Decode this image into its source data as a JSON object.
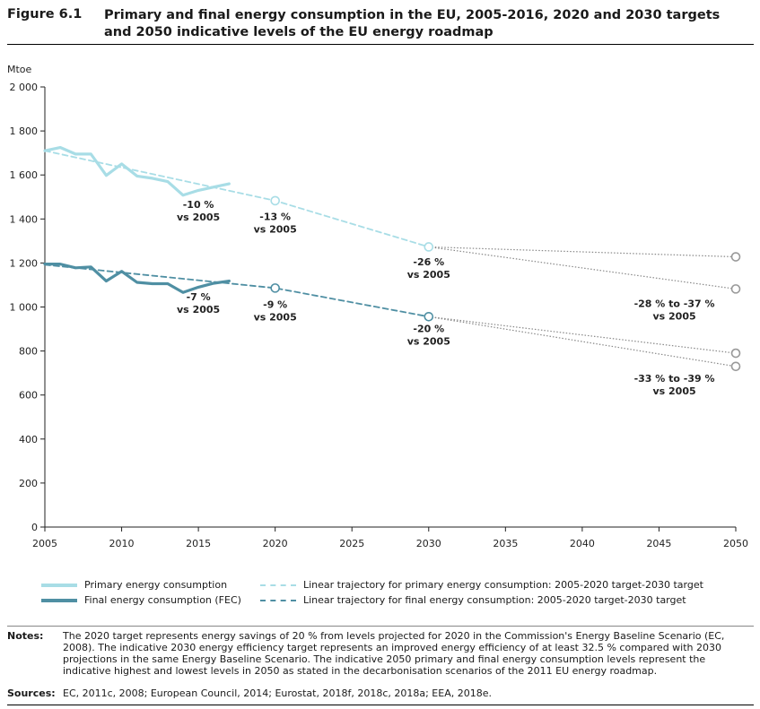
{
  "figure": {
    "number": "Figure 6.1",
    "title": "Primary and final energy consumption in the EU, 2005-2016, 2020 and 2030 targets and 2050 indicative levels of the EU energy roadmap"
  },
  "colors": {
    "primary": "#a8dde6",
    "final": "#4f8fa3",
    "range": "#888888",
    "grid": "#cccccc"
  },
  "chart_data": {
    "type": "line",
    "ylabel": "Mtoe",
    "xlim": [
      2005,
      2050
    ],
    "ylim": [
      0,
      2000
    ],
    "x_ticks": [
      2005,
      2010,
      2015,
      2020,
      2025,
      2030,
      2035,
      2040,
      2045,
      2050
    ],
    "y_ticks": [
      0,
      200,
      400,
      600,
      800,
      1000,
      1200,
      1400,
      1600,
      1800,
      2000
    ],
    "y_tick_labels": [
      "0",
      "200",
      "400",
      "600",
      "800",
      "1 000",
      "1 200",
      "1 400",
      "1 600",
      "1 800",
      "2 000"
    ],
    "grid": false,
    "series": [
      {
        "name": "Primary energy consumption",
        "style": "solid",
        "color": "#a8dde6",
        "x": [
          2005,
          2006,
          2007,
          2008,
          2009,
          2010,
          2011,
          2012,
          2013,
          2014,
          2015,
          2016,
          2017
        ],
        "y": [
          1710,
          1725,
          1695,
          1695,
          1598,
          1650,
          1595,
          1585,
          1570,
          1508,
          1530,
          1545,
          1560
        ]
      },
      {
        "name": "Final energy consumption (FEC)",
        "style": "solid",
        "color": "#4f8fa3",
        "x": [
          2005,
          2006,
          2007,
          2008,
          2009,
          2010,
          2011,
          2012,
          2013,
          2014,
          2015,
          2016,
          2017
        ],
        "y": [
          1195,
          1195,
          1178,
          1182,
          1118,
          1162,
          1112,
          1106,
          1106,
          1066,
          1090,
          1108,
          1118
        ]
      },
      {
        "name": "Linear trajectory for primary energy consumption: 2005-2020 target-2030 target",
        "style": "dashed",
        "color": "#a8dde6",
        "x": [
          2005,
          2020,
          2030
        ],
        "y": [
          1710,
          1483,
          1273
        ]
      },
      {
        "name": "Linear trajectory for final energy consumption: 2005-2020 target-2030 target",
        "style": "dashed",
        "color": "#4f8fa3",
        "x": [
          2005,
          2020,
          2030
        ],
        "y": [
          1192,
          1086,
          956
        ]
      }
    ],
    "range_lines": [
      {
        "x": [
          2030,
          2050
        ],
        "y": [
          1273,
          1228
        ]
      },
      {
        "x": [
          2030,
          2050
        ],
        "y": [
          1273,
          1082
        ]
      },
      {
        "x": [
          2030,
          2050
        ],
        "y": [
          956,
          790
        ]
      },
      {
        "x": [
          2030,
          2050
        ],
        "y": [
          956,
          730
        ]
      }
    ],
    "markers": [
      {
        "x": 2020,
        "y": 1483,
        "color": "#a8dde6"
      },
      {
        "x": 2030,
        "y": 1273,
        "color": "#a8dde6"
      },
      {
        "x": 2020,
        "y": 1086,
        "color": "#4f8fa3"
      },
      {
        "x": 2030,
        "y": 956,
        "color": "#4f8fa3"
      },
      {
        "x": 2050,
        "y": 1228,
        "color": "#999999"
      },
      {
        "x": 2050,
        "y": 1082,
        "color": "#999999"
      },
      {
        "x": 2050,
        "y": 790,
        "color": "#999999"
      },
      {
        "x": 2050,
        "y": 730,
        "color": "#999999"
      }
    ],
    "annotations": [
      {
        "x": 2015,
        "y": 1450,
        "lines": [
          "-10 %",
          "vs 2005"
        ]
      },
      {
        "x": 2020,
        "y": 1395,
        "lines": [
          "-13 %",
          "vs 2005"
        ]
      },
      {
        "x": 2030,
        "y": 1190,
        "lines": [
          "-26 %",
          "vs 2005"
        ]
      },
      {
        "x": 2015,
        "y": 1030,
        "lines": [
          "-7 %",
          "vs 2005"
        ]
      },
      {
        "x": 2020,
        "y": 995,
        "lines": [
          "-9 %",
          "vs 2005"
        ]
      },
      {
        "x": 2030,
        "y": 885,
        "lines": [
          "-20 %",
          "vs 2005"
        ]
      },
      {
        "x": 2046,
        "y": 1000,
        "lines": [
          "-28 % to -37 %",
          "vs 2005"
        ]
      },
      {
        "x": 2046,
        "y": 660,
        "lines": [
          "-33 % to -39 %",
          "vs 2005"
        ]
      }
    ]
  },
  "legend": {
    "items": [
      "Primary energy consumption",
      "Final energy consumption (FEC)",
      "Linear trajectory for primary energy consumption: 2005-2020 target-2030 target",
      "Linear trajectory for final energy consumption: 2005-2020 target-2030 target"
    ]
  },
  "notes": {
    "label": "Notes:",
    "text": "The 2020 target represents energy savings of 20 % from levels projected for 2020 in the Commission's Energy Baseline Scenario (EC, 2008). The indicative 2030 energy efficiency target represents an improved energy efficiency of at least 32.5 % compared with 2030 projections in the same Energy Baseline Scenario. The indicative 2050 primary and final energy consumption levels represent the indicative highest and lowest levels in 2050 as stated in the decarbonisation scenarios of the 2011 EU energy roadmap."
  },
  "sources": {
    "label": "Sources:",
    "text": "EC, 2011c, 2008; European Council, 2014; Eurostat, 2018f, 2018c, 2018a; EEA, 2018e."
  }
}
